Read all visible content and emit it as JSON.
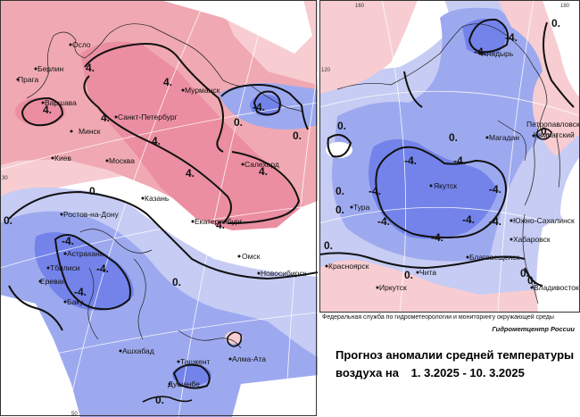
{
  "left_map": {
    "cities": [
      {
        "name": "Осло",
        "ref": "oslo"
      },
      {
        "name": "Берлин",
        "ref": "berlin"
      },
      {
        "name": "Прага",
        "ref": "praga"
      },
      {
        "name": "Варшава",
        "ref": "warsaw"
      },
      {
        "name": "Минск",
        "ref": "minsk"
      },
      {
        "name": "Киев",
        "ref": "kiev"
      },
      {
        "name": "Санкт-Петербург",
        "ref": "spb"
      },
      {
        "name": "Мурманск",
        "ref": "murmansk"
      },
      {
        "name": "Москва",
        "ref": "moscow"
      },
      {
        "name": "Салехард",
        "ref": "salekhard"
      },
      {
        "name": "Казань",
        "ref": "kazan"
      },
      {
        "name": "Екатеринбург",
        "ref": "ekb"
      },
      {
        "name": "Ростов-на-Дону",
        "ref": "rostov"
      },
      {
        "name": "Астрахань",
        "ref": "astrakhan"
      },
      {
        "name": "Тбилиси",
        "ref": "tbilisi"
      },
      {
        "name": "Ереван",
        "ref": "yerevan"
      },
      {
        "name": "Баку",
        "ref": "baku"
      },
      {
        "name": "Омск",
        "ref": "omsk"
      },
      {
        "name": "Новосибирск",
        "ref": "novosibirsk"
      },
      {
        "name": "Ашхабад",
        "ref": "ashgabat"
      },
      {
        "name": "Ташкент",
        "ref": "tashkent"
      },
      {
        "name": "Алма-Ата",
        "ref": "almaty"
      },
      {
        "name": "Душанбе",
        "ref": "dushanbe"
      }
    ],
    "isolines": [
      "4.",
      "4.",
      "4.",
      "4.",
      "4.",
      "4.",
      "4.",
      "0.",
      "0.",
      "0.",
      "0.",
      "0.",
      "0.",
      "-4.",
      "-4.",
      "-4.",
      "4.",
      "-4."
    ],
    "ticks": [
      "30",
      "50"
    ]
  },
  "right_map": {
    "cities": [
      {
        "name": "Анадырь",
        "ref": "anadyr"
      },
      {
        "name": "Петропавловск-",
        "ref": "petropavlovsk1"
      },
      {
        "name": "Камчатский",
        "ref": "petropavlovsk2"
      },
      {
        "name": "Магадан",
        "ref": "magadan"
      },
      {
        "name": "Якутск",
        "ref": "yakutsk"
      },
      {
        "name": "Тура",
        "ref": "tura"
      },
      {
        "name": "Южно-Сахалинск",
        "ref": "yuzhno"
      },
      {
        "name": "Хабаровск",
        "ref": "khabarovsk"
      },
      {
        "name": "Благовещенск",
        "ref": "blagoveshchensk"
      },
      {
        "name": "Красноярск",
        "ref": "krasnoyarsk"
      },
      {
        "name": "Чита",
        "ref": "chita"
      },
      {
        "name": "Иркутск",
        "ref": "irkutsk"
      },
      {
        "name": "Владивосток",
        "ref": "vladivostok"
      }
    ],
    "isolines": [
      "-4.",
      "-4.",
      "-4.",
      "-4.",
      "-4.",
      "-4.",
      "-4.",
      "-4.",
      "-4.",
      "0.",
      "0.",
      "0.",
      "0.",
      "0.",
      "0.",
      "0.",
      "0.",
      "0.",
      "0.",
      "-4."
    ],
    "ticks": [
      "160",
      "120",
      "180"
    ]
  },
  "caption": {
    "agency": "Федеральная служба по гидрометеорологии и мониторингу окружающей среды",
    "center": "Гидрометцентр России",
    "title_line1": "Прогноз аномалии средней температуры",
    "title_line2_prefix": "воздуха на",
    "title_dates": "1. 3.2025 - 10. 3.2025"
  },
  "colors": {
    "warm_light": "#f7cdd2",
    "warm_medium": "#f0a9b2",
    "warm_strong": "#eb8ea1",
    "cold_light": "#c6ccf3",
    "cold_medium": "#9da9ef",
    "cold_strong": "#7383e9"
  }
}
